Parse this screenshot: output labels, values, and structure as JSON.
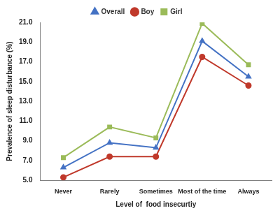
{
  "chart_data": {
    "type": "line",
    "x_label": "Level of  food insecurtiy",
    "y_label": "Prevalence of sleep disturbance (%)",
    "categories": [
      "Never",
      "Rarely",
      "Sometimes",
      "Most of the time",
      "Always"
    ],
    "series": [
      {
        "name": "Overall",
        "color": "#4472c4",
        "marker": "triangle",
        "line_style": "solid",
        "values": [
          6.3,
          8.8,
          8.3,
          19.1,
          15.5
        ]
      },
      {
        "name": "Boy",
        "color": "#c0392b",
        "marker": "circle",
        "line_style": "solid",
        "values": [
          5.3,
          7.4,
          7.4,
          17.5,
          14.6
        ]
      },
      {
        "name": "Girl",
        "color": "#9bbb59",
        "marker": "square",
        "line_style": "solid",
        "values": [
          7.3,
          10.4,
          9.3,
          20.9,
          16.7
        ]
      }
    ],
    "ylim": [
      5,
      21
    ],
    "yticks": [
      {
        "value": 5,
        "label": "5.0"
      },
      {
        "value": 7,
        "label": "7.0"
      },
      {
        "value": 9,
        "label": "9.0"
      },
      {
        "value": 11,
        "label": "11.0"
      },
      {
        "value": 13,
        "label": "13.0"
      },
      {
        "value": 15,
        "label": "15.0"
      },
      {
        "value": 17,
        "label": "17.0"
      },
      {
        "value": 19,
        "label": "19.0"
      },
      {
        "value": 21,
        "label": "21.0"
      }
    ],
    "grid": false,
    "legend": "top"
  }
}
